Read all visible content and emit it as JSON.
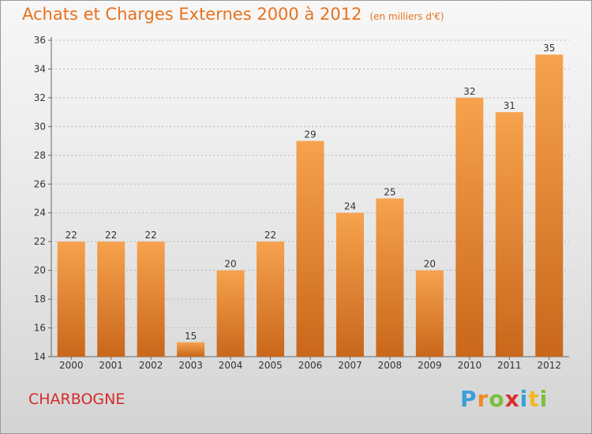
{
  "title": "Achats et Charges Externes 2000 à 2012",
  "unit": "(en milliers d'€)",
  "commune": "CHARBOGNE",
  "logo": {
    "text": "Proxiti",
    "letter_colors": [
      "#3a9fd8",
      "#f08a24",
      "#7bbf3a",
      "#d9302c",
      "#3a9fd8",
      "#f0b820",
      "#7bbf3a"
    ]
  },
  "colors": {
    "bar_top": "#f6a24e",
    "bar_bottom": "#c9671b",
    "text": "#333333",
    "axis": "#666666",
    "grid": "#b8b8b8",
    "title": "#e8721e",
    "commune": "#d42b2b"
  },
  "chart_data": {
    "type": "bar",
    "title": "Achats et Charges Externes 2000 à 2012",
    "categories": [
      "2000",
      "2001",
      "2002",
      "2003",
      "2004",
      "2005",
      "2006",
      "2007",
      "2008",
      "2009",
      "2010",
      "2011",
      "2012"
    ],
    "values": [
      22,
      22,
      22,
      15,
      20,
      22,
      29,
      24,
      25,
      20,
      32,
      31,
      35
    ],
    "yticks": [
      14,
      16,
      18,
      20,
      22,
      24,
      26,
      28,
      30,
      32,
      34,
      36
    ],
    "ylim": [
      14,
      36
    ],
    "grid": true,
    "xlabel": "",
    "ylabel": ""
  }
}
